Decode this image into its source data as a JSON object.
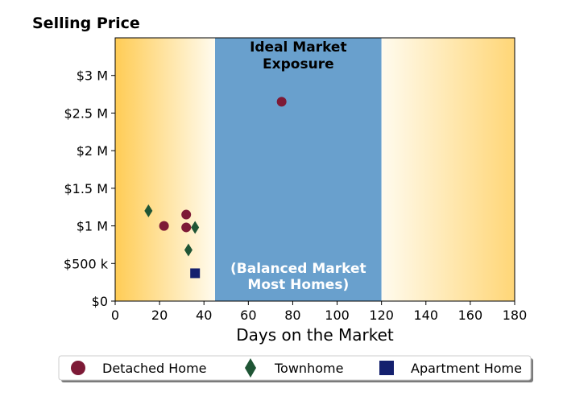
{
  "chart_data": {
    "type": "scatter",
    "ylabel": "Selling Price",
    "xlabel": "Days on the Market",
    "xlim": [
      0,
      180
    ],
    "ylim": [
      0,
      3500000
    ],
    "x_ticks": [
      0,
      20,
      40,
      60,
      80,
      100,
      120,
      140,
      160,
      180
    ],
    "x_tick_labels": [
      "0",
      "20",
      "40",
      "60",
      "80",
      "100",
      "120",
      "140",
      "160",
      "180"
    ],
    "y_ticks": [
      0,
      500000,
      1000000,
      1500000,
      2000000,
      2500000,
      3000000
    ],
    "y_tick_labels": [
      "$0",
      "$500 k",
      "$1 M",
      "$1.5 M",
      "$2 M",
      "$2.5 M",
      "$3 M"
    ],
    "grid": false,
    "legend_position": "bottom",
    "bands": [
      {
        "x_range": [
          0,
          45
        ],
        "style": "gradient",
        "color_outer": "#ffcc55",
        "color_inner": "#fffbee"
      },
      {
        "x_range": [
          45,
          120
        ],
        "style": "solid",
        "color": "#69a0cd",
        "label_top": [
          "Ideal Market",
          "Exposure"
        ],
        "label_bottom": [
          "(Balanced Market",
          "Most Homes)"
        ]
      },
      {
        "x_range": [
          120,
          180
        ],
        "style": "gradient",
        "color_outer": "#ffd677",
        "color_inner": "#fffbee"
      }
    ],
    "series": [
      {
        "name": "Detached Home",
        "marker": "circle",
        "color": "#7d1a36",
        "points": [
          [
            22,
            1000000
          ],
          [
            32,
            1150000
          ],
          [
            32,
            980000
          ],
          [
            75,
            2650000
          ]
        ]
      },
      {
        "name": "Townhome",
        "marker": "diamond",
        "color": "#1f5535",
        "points": [
          [
            15,
            1200000
          ],
          [
            36,
            980000
          ],
          [
            33,
            680000
          ]
        ]
      },
      {
        "name": "Apartment Home",
        "marker": "square",
        "color": "#14206e",
        "points": [
          [
            36,
            370000
          ]
        ]
      }
    ]
  }
}
